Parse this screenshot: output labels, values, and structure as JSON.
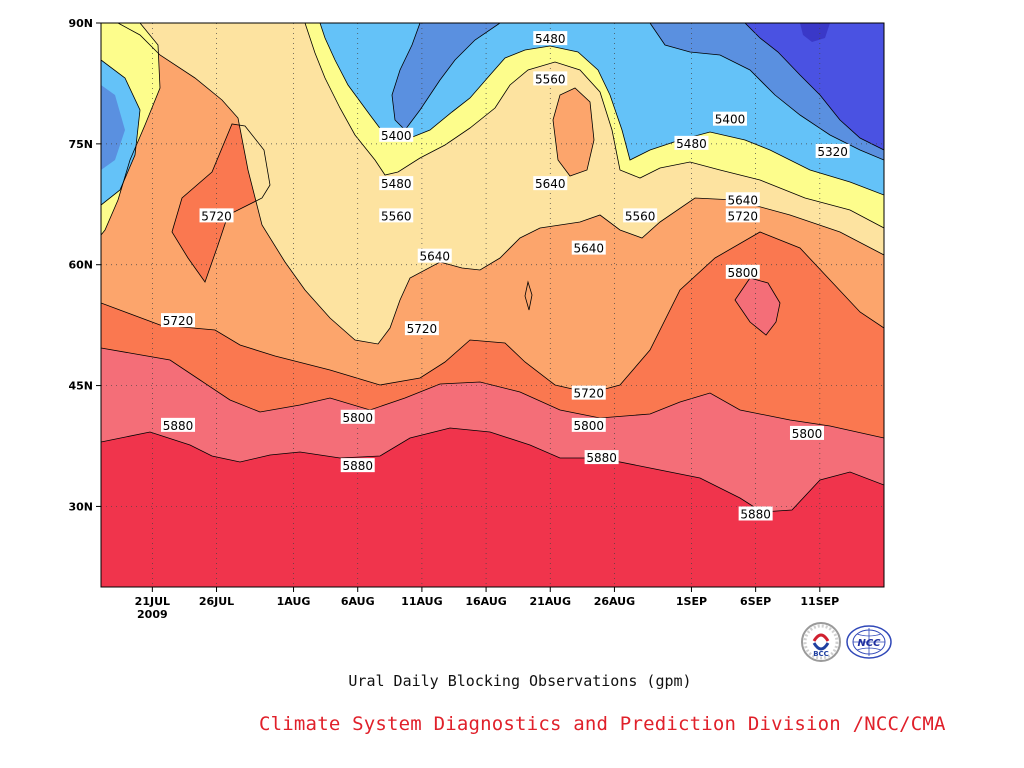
{
  "chart_data": {
    "type": "filled contour",
    "title": "Ural Daily Blocking Observations (gpm)",
    "x_ticks": [
      "21JUL",
      "26JUL",
      "1AUG",
      "6AUG",
      "11AUG",
      "16AUG",
      "21AUG",
      "26AUG",
      "1SEP",
      "6SEP",
      "11SEP"
    ],
    "x_year": "2009",
    "x_range": [
      "2009-07-17",
      "2009-09-16"
    ],
    "y_ticks": [
      "30N",
      "45N",
      "60N",
      "75N",
      "90N"
    ],
    "y_range": [
      20,
      90
    ],
    "levels": [
      5320,
      5400,
      5480,
      5560,
      5640,
      5720,
      5800,
      5880
    ],
    "colors": {
      "below_5320": "#4a52e2",
      "5320_5400": "#5a90e0",
      "5400_5480": "#64c2f8",
      "5480_5560": "#fdfd8c",
      "5560_5640": "#fde3a0",
      "5640_5720": "#fca56c",
      "5720_5800": "#fa7850",
      "5800_5880": "#f46e78",
      "above_5880": "#f0344c"
    },
    "contour_labels": [
      {
        "text": "5480",
        "date": "2009-08-21",
        "lat": 88
      },
      {
        "text": "5560",
        "date": "2009-08-21",
        "lat": 83
      },
      {
        "text": "5400",
        "date": "2009-08-09",
        "lat": 76
      },
      {
        "text": "5400",
        "date": "2009-09-04",
        "lat": 78
      },
      {
        "text": "5320",
        "date": "2009-09-12",
        "lat": 74
      },
      {
        "text": "5480",
        "date": "2009-09-01",
        "lat": 75
      },
      {
        "text": "5640",
        "date": "2009-08-21",
        "lat": 70
      },
      {
        "text": "5480",
        "date": "2009-08-09",
        "lat": 70
      },
      {
        "text": "5560",
        "date": "2009-08-09",
        "lat": 66
      },
      {
        "text": "5560",
        "date": "2009-08-28",
        "lat": 66
      },
      {
        "text": "5640",
        "date": "2009-09-05",
        "lat": 68
      },
      {
        "text": "5720",
        "date": "2009-09-05",
        "lat": 66
      },
      {
        "text": "5720",
        "date": "2009-07-26",
        "lat": 66
      },
      {
        "text": "5640",
        "date": "2009-08-12",
        "lat": 61
      },
      {
        "text": "5640",
        "date": "2009-08-24",
        "lat": 62
      },
      {
        "text": "5800",
        "date": "2009-09-05",
        "lat": 59
      },
      {
        "text": "5720",
        "date": "2009-07-23",
        "lat": 53
      },
      {
        "text": "5720",
        "date": "2009-08-11",
        "lat": 52
      },
      {
        "text": "5720",
        "date": "2009-08-24",
        "lat": 44
      },
      {
        "text": "5800",
        "date": "2009-08-06",
        "lat": 41
      },
      {
        "text": "5800",
        "date": "2009-08-24",
        "lat": 40
      },
      {
        "text": "5800",
        "date": "2009-09-10",
        "lat": 39
      },
      {
        "text": "5880",
        "date": "2009-07-23",
        "lat": 40
      },
      {
        "text": "5880",
        "date": "2009-08-06",
        "lat": 35
      },
      {
        "text": "5880",
        "date": "2009-08-25",
        "lat": 36
      },
      {
        "text": "5880",
        "date": "2009-09-06",
        "lat": 29
      }
    ],
    "grid": "dotted"
  },
  "footer": {
    "credit": "Climate System Diagnostics and Prediction Division /NCC/CMA",
    "logo_bcc": "BCC",
    "logo_ncc": "NCC"
  }
}
